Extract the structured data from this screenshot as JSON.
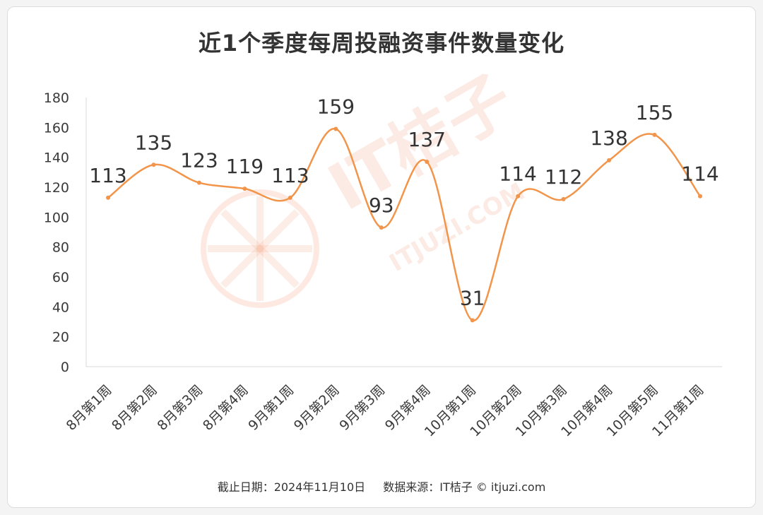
{
  "title": "近1个季度每周投融资事件数量变化",
  "footer": {
    "date": "截止日期：2024年11月10日",
    "source": "数据来源：IT桔子 © itjuzi.com"
  },
  "watermark": {
    "brand": "IT桔子",
    "url": "ITJUZI.COM",
    "color": "#f6a98c"
  },
  "colors": {
    "line": "#f2954a",
    "axis": "#d9d9d9",
    "text": "#333333"
  },
  "chart_data": {
    "type": "line",
    "smooth": true,
    "categories": [
      "8月第1周",
      "8月第2周",
      "8月第3周",
      "8月第4周",
      "9月第1周",
      "9月第2周",
      "9月第3周",
      "9月第4周",
      "10月第1周",
      "10月第2周",
      "10月第3周",
      "10月第4周",
      "10月第5周",
      "11月第1周"
    ],
    "series": [
      {
        "values": [
          113,
          135,
          123,
          119,
          113,
          159,
          93,
          137,
          31,
          114,
          112,
          138,
          155,
          114
        ]
      }
    ],
    "ylim": [
      0,
      180
    ],
    "yticks": [
      0,
      20,
      40,
      60,
      80,
      100,
      120,
      140,
      160,
      180
    ],
    "grid": false,
    "legend": "none",
    "data_labels": true
  }
}
